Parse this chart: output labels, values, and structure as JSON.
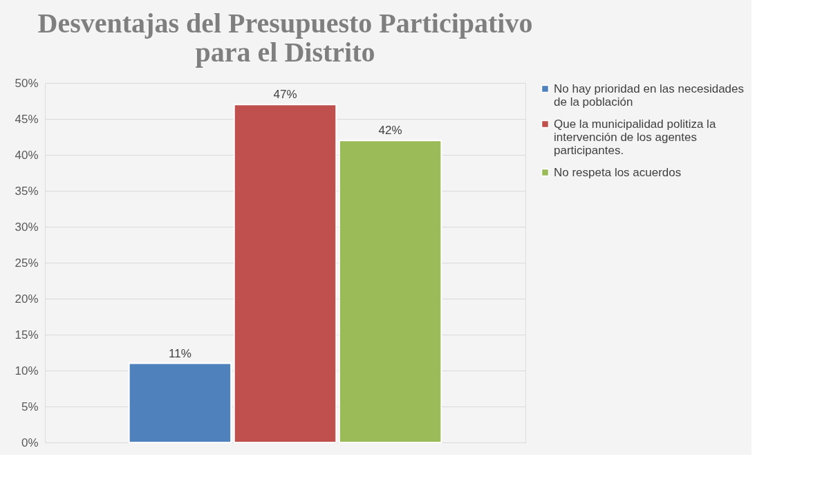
{
  "chart_data": {
    "type": "bar",
    "title": "Desventajas del Presupuesto Participativo para el Distrito",
    "categories": [
      null
    ],
    "series": [
      {
        "name": "No hay prioridad en las necesidades de la población",
        "color": "#4f81bd",
        "values": [
          11
        ],
        "value_labels": [
          "11%"
        ]
      },
      {
        "name": "Que la municipalidad politiza la intervención de los agentes participantes.",
        "color": "#c0504d",
        "values": [
          47
        ],
        "value_labels": [
          "47%"
        ]
      },
      {
        "name": "No respeta los acuerdos",
        "color": "#9bbb59",
        "values": [
          42
        ],
        "value_labels": [
          "42%"
        ]
      }
    ],
    "ylim": [
      0,
      50
    ],
    "yticks": [
      {
        "value": 0,
        "label": "0%"
      },
      {
        "value": 5,
        "label": "5%"
      },
      {
        "value": 10,
        "label": "10%"
      },
      {
        "value": 15,
        "label": "15%"
      },
      {
        "value": 20,
        "label": "20%"
      },
      {
        "value": 25,
        "label": "25%"
      },
      {
        "value": 30,
        "label": "30%"
      },
      {
        "value": 35,
        "label": "35%"
      },
      {
        "value": 40,
        "label": "40%"
      },
      {
        "value": 45,
        "label": "45%"
      },
      {
        "value": 50,
        "label": "50%"
      }
    ],
    "grid": "y",
    "legend": "right"
  }
}
